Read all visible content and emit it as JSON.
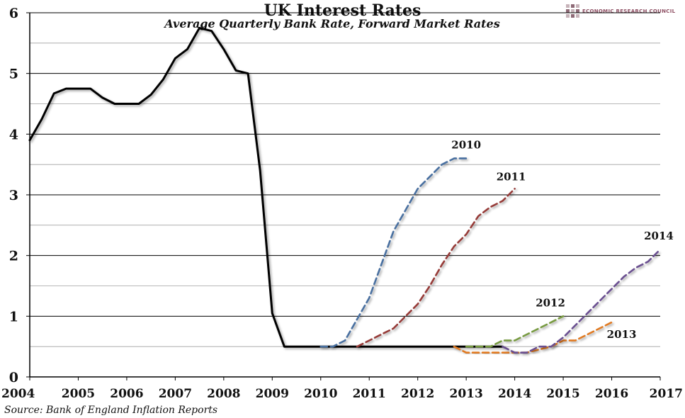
{
  "title": "UK Interest Rates",
  "subtitle": "Average Quarterly Bank Rate, Forward Market Rates",
  "source": "Source: Bank of England Inflation Reports",
  "logo_text": "ECONOMIC RESEARCH COUNCIL",
  "colors": {
    "bank_rate": "#000000",
    "2010": "#4a6fa0",
    "2011": "#963a37",
    "2012": "#779a40",
    "2013": "#e07a22",
    "2014": "#6a5090"
  },
  "chart_data": {
    "type": "line",
    "title": "UK Interest Rates",
    "subtitle": "Average Quarterly Bank Rate, Forward Market Rates",
    "xlabel": "",
    "ylabel": "",
    "xlim": [
      2004.0,
      2017.0
    ],
    "ylim": [
      0,
      6
    ],
    "grid": true,
    "legend": "inline-labels",
    "x_ticks": [
      "2004",
      "2005",
      "2006",
      "2007",
      "2008",
      "2009",
      "2010",
      "2011",
      "2012",
      "2013",
      "2014",
      "2015",
      "2016",
      "2017"
    ],
    "y_ticks": [
      "0",
      "1",
      "2",
      "3",
      "4",
      "5",
      "6"
    ],
    "series": [
      {
        "label": "",
        "style": "solid",
        "x": [
          2004.0,
          2004.25,
          2004.5,
          2004.75,
          2005.0,
          2005.25,
          2005.5,
          2005.75,
          2006.0,
          2006.25,
          2006.5,
          2006.75,
          2007.0,
          2007.25,
          2007.5,
          2007.75,
          2008.0,
          2008.25,
          2008.5,
          2008.75,
          2009.0,
          2009.25,
          2009.5,
          2010.0,
          2011.0,
          2012.0,
          2013.0,
          2013.75
        ],
        "y": [
          3.9,
          4.25,
          4.67,
          4.75,
          4.75,
          4.75,
          4.6,
          4.5,
          4.5,
          4.5,
          4.65,
          4.9,
          5.25,
          5.4,
          5.75,
          5.7,
          5.4,
          5.05,
          5.0,
          3.4,
          1.05,
          0.5,
          0.5,
          0.5,
          0.5,
          0.5,
          0.5,
          0.5
        ]
      },
      {
        "label": "2010",
        "style": "dashed",
        "x": [
          2010.0,
          2010.25,
          2010.5,
          2010.75,
          2011.0,
          2011.25,
          2011.5,
          2011.75,
          2012.0,
          2012.25,
          2012.5,
          2012.75,
          2013.0
        ],
        "y": [
          0.5,
          0.5,
          0.6,
          0.95,
          1.3,
          1.85,
          2.4,
          2.75,
          3.1,
          3.3,
          3.5,
          3.6,
          3.6
        ]
      },
      {
        "label": "2011",
        "style": "dashed",
        "x": [
          2010.75,
          2011.0,
          2011.25,
          2011.5,
          2011.75,
          2012.0,
          2012.25,
          2012.5,
          2012.75,
          2013.0,
          2013.25,
          2013.5,
          2013.75,
          2014.0
        ],
        "y": [
          0.5,
          0.6,
          0.7,
          0.8,
          1.0,
          1.2,
          1.5,
          1.85,
          2.15,
          2.35,
          2.65,
          2.8,
          2.9,
          3.1
        ]
      },
      {
        "label": "2012",
        "style": "dashed",
        "x": [
          2013.0,
          2013.25,
          2013.5,
          2013.75,
          2014.0,
          2014.25,
          2014.5,
          2014.75,
          2015.0
        ],
        "y": [
          0.5,
          0.5,
          0.5,
          0.6,
          0.6,
          0.7,
          0.8,
          0.9,
          1.0
        ]
      },
      {
        "label": "2013",
        "style": "dashed",
        "x": [
          2012.75,
          2013.0,
          2013.25,
          2013.5,
          2013.75,
          2014.0,
          2014.25,
          2014.5,
          2014.75,
          2015.0,
          2015.25,
          2015.5,
          2015.75,
          2016.0
        ],
        "y": [
          0.5,
          0.4,
          0.4,
          0.4,
          0.4,
          0.4,
          0.4,
          0.45,
          0.5,
          0.6,
          0.6,
          0.7,
          0.8,
          0.9
        ]
      },
      {
        "label": "2014",
        "style": "dashed",
        "x": [
          2013.75,
          2014.0,
          2014.25,
          2014.5,
          2014.75,
          2015.0,
          2015.25,
          2015.5,
          2015.75,
          2016.0,
          2016.25,
          2016.5,
          2016.75,
          2017.0
        ],
        "y": [
          0.5,
          0.4,
          0.4,
          0.5,
          0.5,
          0.65,
          0.85,
          1.05,
          1.25,
          1.45,
          1.65,
          1.8,
          1.9,
          2.1
        ]
      }
    ]
  }
}
